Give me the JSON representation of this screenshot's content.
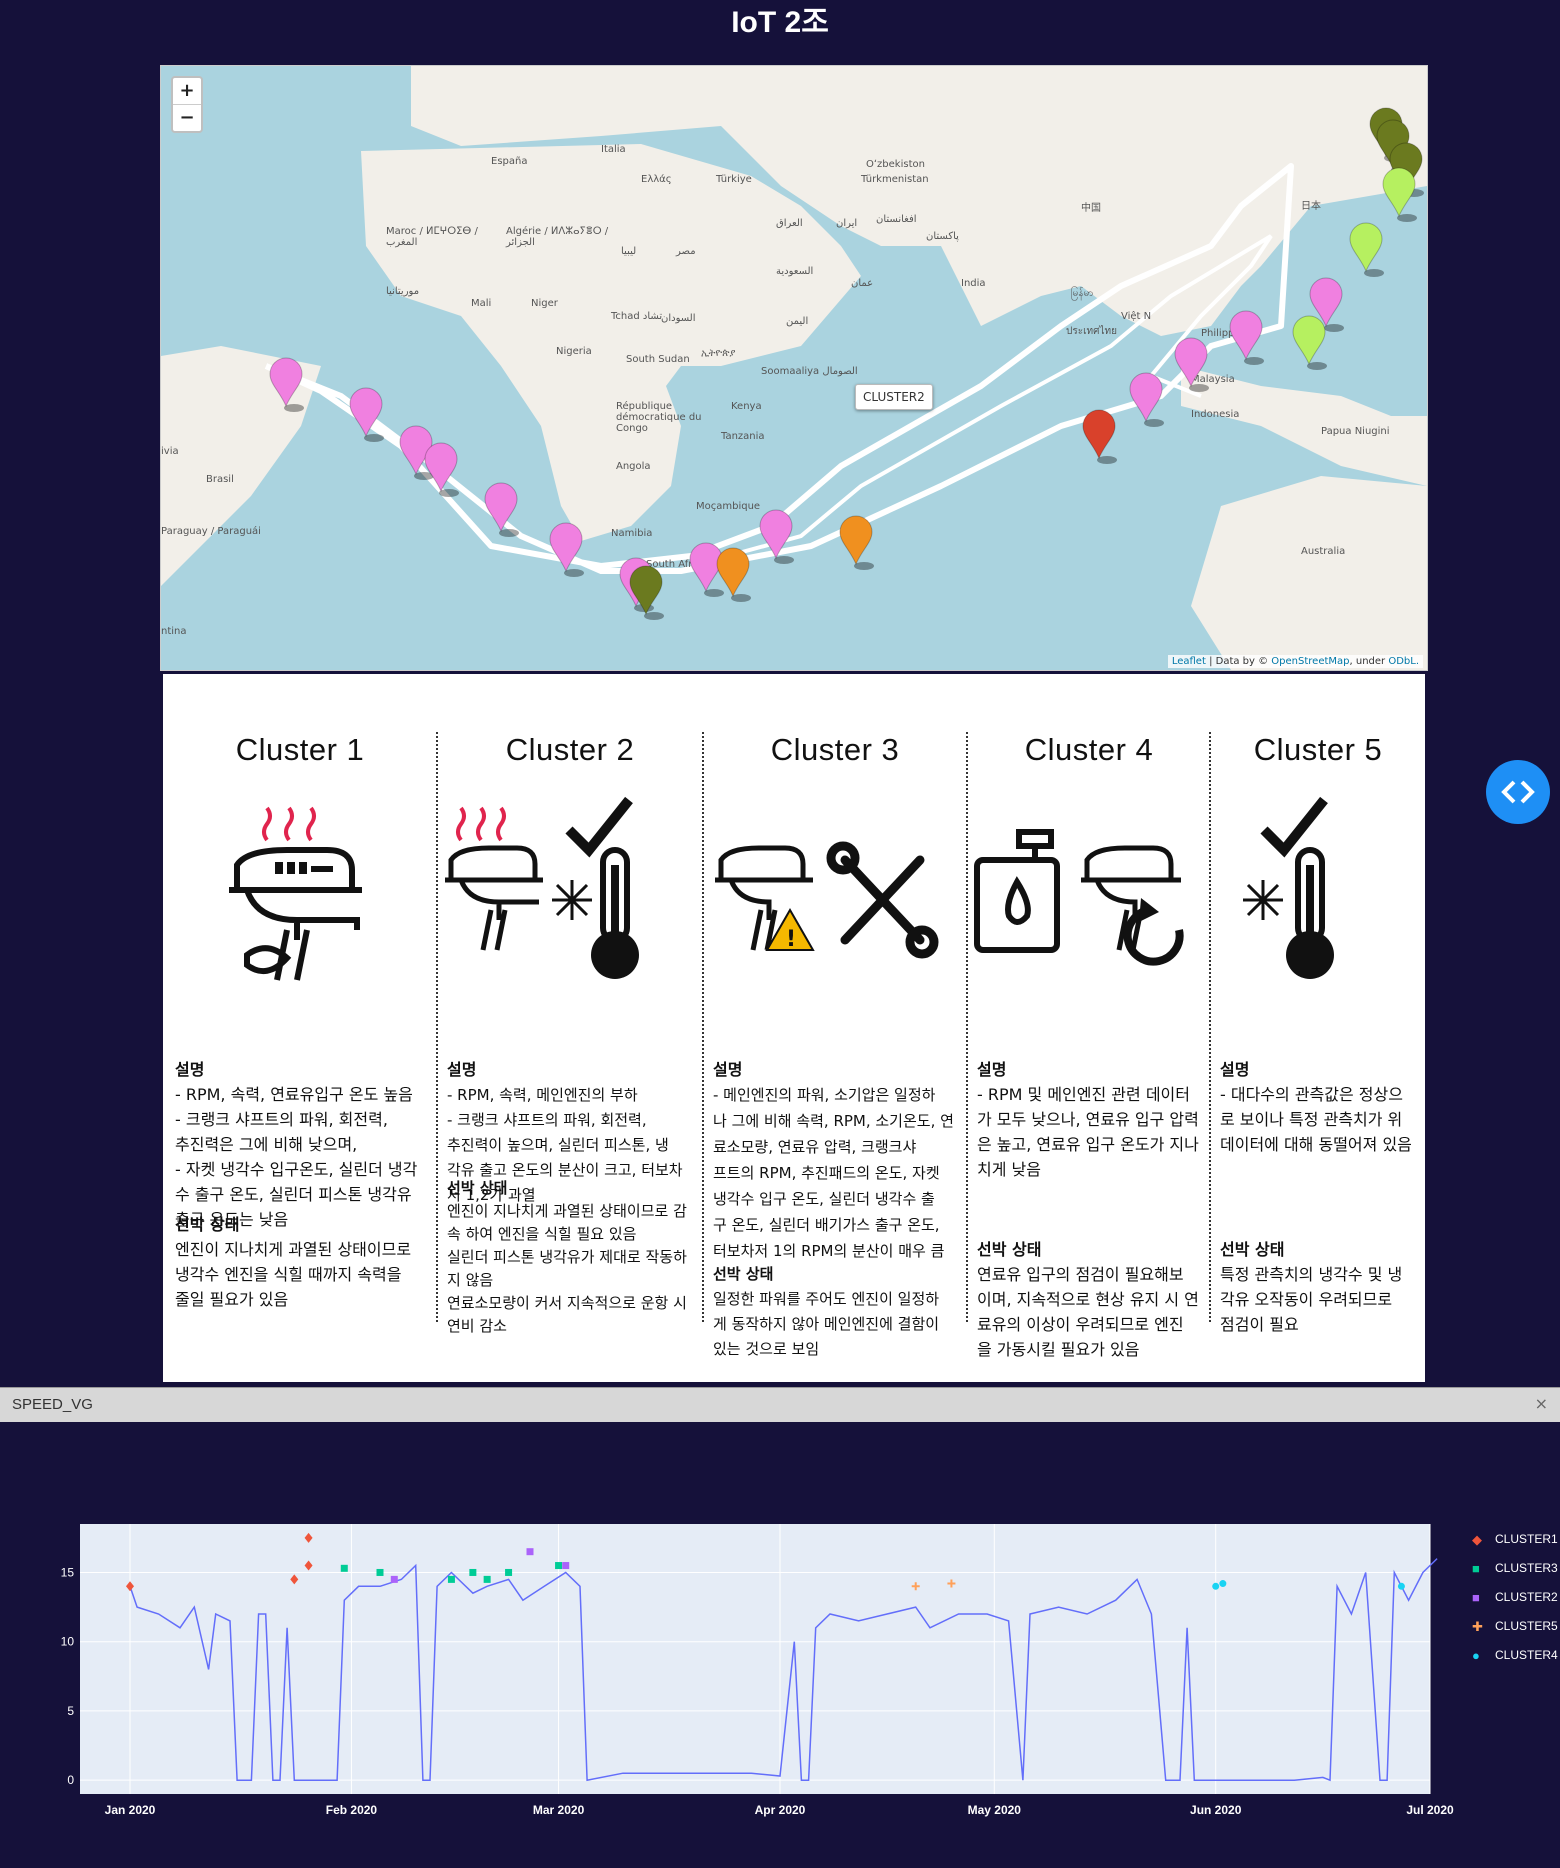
{
  "app_title": "IoT 2조",
  "map": {
    "zoom_in": "+",
    "zoom_out": "−",
    "tooltip": "CLUSTER2",
    "attribution": {
      "leaflet": "Leaflet",
      "data_by": " | Data by © ",
      "osm": "OpenStreetMap",
      "under": ", under ",
      "odbl": "ODbL."
    },
    "labels": [
      "España",
      "Italia",
      "Ελλάς",
      "Türkiye",
      "Oʻzbekiston",
      "Türkmenistan",
      "中国",
      "日本",
      "Maroc / ⵍⵎⵖⵔⵉⴱ / المغرب",
      "Algérie / ⵍⴷⵣⴰⵢⴻⵔ / الجزائر",
      "ليبيا",
      "مصر",
      "العراق",
      "ایران",
      "افغانستان",
      "پاکستان",
      "السعودية",
      "عمان",
      "India",
      "موريتانيا",
      "Mali",
      "Niger",
      "Tchad تشاد",
      "السودان",
      "اليمن",
      "Nigeria",
      "South Sudan",
      "ኢትዮጵያ",
      "Soomaaliya الصومال",
      "République démocratique du Congo",
      "Kenya",
      "Tanzania",
      "Angola",
      "Brasil",
      "Moçambique",
      "Namibia",
      "South Africa",
      "Paraguay / Paraguái",
      "ivia",
      "ntina",
      "Việt N",
      "ประเทศไทย",
      "Philippines",
      "Malaysia",
      "Indonesia",
      "Papua Niugini",
      "Australia",
      "မြန်မာ"
    ],
    "marker_colors": {
      "cluster1": "#6b7a1f",
      "cluster2": "#f080e0",
      "cluster3": "#b6f060",
      "cluster4": "#f0901f",
      "cluster5": "#d9412b"
    }
  },
  "clusters": [
    {
      "title": "Cluster 1",
      "desc_head": "설명",
      "desc": "- RPM, 속력, 연료유입구 온도 높음\n- 크랭크 샤프트의 파워, 회전력,\n  추진력은 그에 비해 낮으며,\n- 자켓 냉각수 입구온도, 실린더 냉각\n수 출구 온도, 실린더 피스톤 냉각유\n출구 온도는 낮음",
      "state_head": "선박 상태",
      "state": "엔진이 지나치게 과열된 상태이므로\n냉각수 엔진을 식힐 때까지 속력을\n줄일 필요가 있음"
    },
    {
      "title": "Cluster 2",
      "desc_head": "설명",
      "desc": "- RPM, 속력, 메인엔진의 부하\n- 크랭크 샤프트의 파워, 회전력,\n  추진력이 높으며, 실린더 피스톤, 냉\n각유 출고 온도의 분산이 크고, 터보차\n저 1,2가 과열",
      "state_head": "선박 상태",
      "state": "엔진이 지나치게 과열된 상태이므로 감\n속 하여 엔진을 식힐 필요 있음\n실린더 피스톤 냉각유가 제대로 작동하\n지 않음\n연료소모량이 커서 지속적으로 운항 시\n연비 감소"
    },
    {
      "title": "Cluster 3",
      "desc_head": "설명",
      "desc": "- 메인엔진의 파워, 소기압은 일정하\n나 그에 비해 속력, RPM, 소기온도, 연\n료소모량, 연료유 압력, 크랭크샤\n프트의 RPM, 추진패드의 온도, 자켓\n냉각수 입구 온도, 실린더 냉각수 출\n구 온도, 실린더 배기가스 출구 온도,\n터보차저 1의 RPM의 분산이 매우 큼",
      "state_head": "선박 상태",
      "state": "일정한 파워를 주어도 엔진이 일정하\n게 동작하지 않아 메인엔진에 결함이\n있는 것으로 보임"
    },
    {
      "title": "Cluster 4",
      "desc_head": "설명",
      "desc": "- RPM 및 메인엔진 관련 데이터\n가 모두 낮으나, 연료유 입구 압력\n은 높고, 연료유 입구 온도가 지나\n치게 낮음",
      "state_head": "선박 상태",
      "state": "연료유 입구의 점검이 필요해보\n이며, 지속적으로 현상 유지 시 연\n료유의 이상이 우려되므로 엔진\n을 가동시킬 필요가 있음"
    },
    {
      "title": "Cluster 5",
      "desc_head": "설명",
      "desc": "- 대다수의 관측값은 정상으\n로 보이나 특정 관측치가 위\n데이터에 대해 동떨어져 있음",
      "state_head": "선박 상태",
      "state": "특정 관측치의 냉각수 및 냉\n각유 오작동이 우려되므로\n점검이 필요"
    }
  ],
  "speed_panel": {
    "tab_label": "SPEED_VG",
    "close": "×"
  },
  "chart_data": {
    "type": "line",
    "title": "",
    "xlabel": "",
    "ylabel": "",
    "x_ticks": [
      "Jan 2020",
      "Feb 2020",
      "Mar 2020",
      "Apr 2020",
      "May 2020",
      "Jun 2020",
      "Jul 2020"
    ],
    "y_ticks": [
      0,
      5,
      10,
      15
    ],
    "x_range": [
      "2019-12-25",
      "2020-07-01"
    ],
    "ylim": [
      -1,
      18.5
    ],
    "line_color": "#636efa",
    "speed_series": [
      [
        "2020-01-01",
        14
      ],
      [
        "2020-01-02",
        12.5
      ],
      [
        "2020-01-05",
        12
      ],
      [
        "2020-01-08",
        11
      ],
      [
        "2020-01-10",
        12.5
      ],
      [
        "2020-01-12",
        8
      ],
      [
        "2020-01-13",
        12
      ],
      [
        "2020-01-15",
        11.5
      ],
      [
        "2020-01-16",
        0
      ],
      [
        "2020-01-18",
        0
      ],
      [
        "2020-01-19",
        12
      ],
      [
        "2020-01-20",
        12
      ],
      [
        "2020-01-21",
        0
      ],
      [
        "2020-01-22",
        0
      ],
      [
        "2020-01-23",
        11
      ],
      [
        "2020-01-24",
        0
      ],
      [
        "2020-01-30",
        0
      ],
      [
        "2020-01-31",
        13
      ],
      [
        "2020-02-02",
        14
      ],
      [
        "2020-02-05",
        14
      ],
      [
        "2020-02-08",
        14.5
      ],
      [
        "2020-02-10",
        15.5
      ],
      [
        "2020-02-11",
        0
      ],
      [
        "2020-02-12",
        0
      ],
      [
        "2020-02-13",
        14
      ],
      [
        "2020-02-15",
        15
      ],
      [
        "2020-02-18",
        13.5
      ],
      [
        "2020-02-20",
        14
      ],
      [
        "2020-02-23",
        14.5
      ],
      [
        "2020-02-25",
        13
      ],
      [
        "2020-02-28",
        14
      ],
      [
        "2020-03-02",
        15
      ],
      [
        "2020-03-04",
        14
      ],
      [
        "2020-03-05",
        0
      ],
      [
        "2020-03-10",
        0.5
      ],
      [
        "2020-03-20",
        0.5
      ],
      [
        "2020-03-28",
        0.5
      ],
      [
        "2020-04-01",
        0.3
      ],
      [
        "2020-04-03",
        10
      ],
      [
        "2020-04-04",
        0
      ],
      [
        "2020-04-05",
        0
      ],
      [
        "2020-04-06",
        11
      ],
      [
        "2020-04-08",
        12
      ],
      [
        "2020-04-12",
        11.5
      ],
      [
        "2020-04-16",
        12
      ],
      [
        "2020-04-20",
        12.5
      ],
      [
        "2020-04-22",
        11
      ],
      [
        "2020-04-26",
        12
      ],
      [
        "2020-04-30",
        12
      ],
      [
        "2020-05-03",
        11.5
      ],
      [
        "2020-05-05",
        0
      ],
      [
        "2020-05-06",
        12
      ],
      [
        "2020-05-10",
        12.5
      ],
      [
        "2020-05-14",
        12
      ],
      [
        "2020-05-18",
        13
      ],
      [
        "2020-05-21",
        14.5
      ],
      [
        "2020-05-23",
        12
      ],
      [
        "2020-05-25",
        0
      ],
      [
        "2020-05-27",
        0
      ],
      [
        "2020-05-28",
        11
      ],
      [
        "2020-05-29",
        0
      ],
      [
        "2020-06-05",
        0
      ],
      [
        "2020-06-12",
        0
      ],
      [
        "2020-06-16",
        0.2
      ],
      [
        "2020-06-17",
        0
      ],
      [
        "2020-06-18",
        14
      ],
      [
        "2020-06-20",
        12
      ],
      [
        "2020-06-22",
        15
      ],
      [
        "2020-06-24",
        0
      ],
      [
        "2020-06-25",
        0
      ],
      [
        "2020-06-26",
        15
      ],
      [
        "2020-06-28",
        13
      ],
      [
        "2020-06-30",
        15
      ],
      [
        "2020-07-02",
        16
      ]
    ],
    "series": [
      {
        "name": "CLUSTER1",
        "color": "#ef553b",
        "marker": "diamond",
        "points": [
          [
            "2020-01-01",
            14
          ],
          [
            "2020-01-24",
            14.5
          ],
          [
            "2020-01-26",
            17.5
          ],
          [
            "2020-01-26",
            15.5
          ]
        ]
      },
      {
        "name": "CLUSTER3",
        "color": "#00cc96",
        "marker": "square",
        "points": [
          [
            "2020-01-31",
            15.3
          ],
          [
            "2020-02-05",
            15
          ],
          [
            "2020-02-15",
            14.5
          ],
          [
            "2020-02-18",
            15
          ],
          [
            "2020-02-20",
            14.5
          ],
          [
            "2020-02-23",
            15
          ],
          [
            "2020-03-01",
            15.5
          ]
        ]
      },
      {
        "name": "CLUSTER2",
        "color": "#ab63fa",
        "marker": "square",
        "points": [
          [
            "2020-02-07",
            14.5
          ],
          [
            "2020-02-26",
            16.5
          ],
          [
            "2020-03-02",
            15.5
          ]
        ]
      },
      {
        "name": "CLUSTER5",
        "color": "#ffa15a",
        "marker": "cross",
        "points": [
          [
            "2020-04-20",
            14
          ],
          [
            "2020-04-25",
            14.2
          ]
        ]
      },
      {
        "name": "CLUSTER4",
        "color": "#19d3f3",
        "marker": "circle",
        "points": [
          [
            "2020-06-01",
            14
          ],
          [
            "2020-06-02",
            14.2
          ],
          [
            "2020-06-27",
            14
          ]
        ]
      }
    ]
  }
}
